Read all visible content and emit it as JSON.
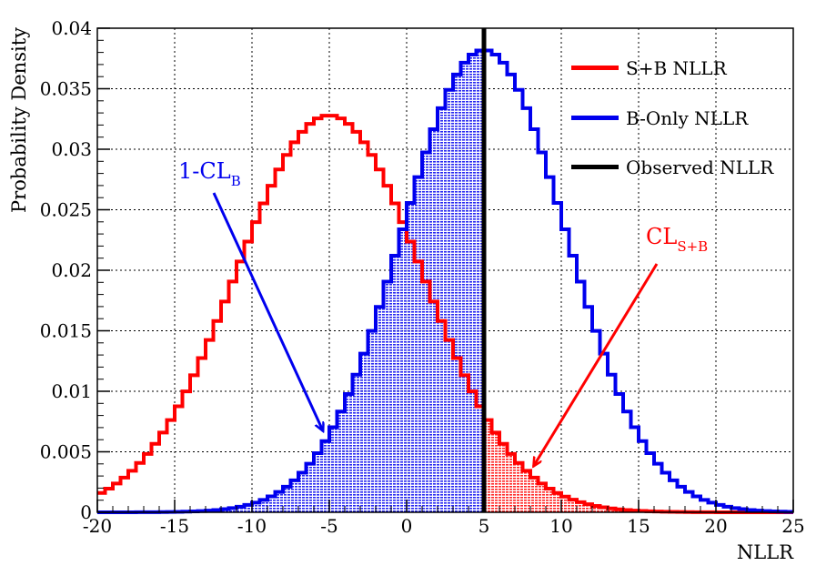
{
  "chart_data": {
    "type": "step-histogram",
    "xlabel": "NLLR",
    "ylabel": "Probability Density",
    "xlim": [
      -20,
      25
    ],
    "ylim": [
      0,
      0.04
    ],
    "x_ticks": [
      -20,
      -15,
      -10,
      -5,
      0,
      5,
      10,
      15,
      20,
      25
    ],
    "x_tick_labels": [
      "-20",
      "-15",
      "-10",
      "-5",
      "0",
      "5",
      "10",
      "15",
      "20",
      "25"
    ],
    "y_ticks": [
      0,
      0.005,
      0.01,
      0.015,
      0.02,
      0.025,
      0.03,
      0.035,
      0.04
    ],
    "y_tick_labels": [
      "0",
      "0.005",
      "0.01",
      "0.015",
      "0.02",
      "0.025",
      "0.03",
      "0.035",
      "0.04"
    ],
    "grid": true,
    "bin_width": 0.5,
    "legend_position": "top-right",
    "series": [
      {
        "name": "S+B NLLR",
        "color": "#ff0000",
        "shape": "gaussian",
        "mean": -5.0,
        "sigma": 6.0,
        "peak": 0.0328
      },
      {
        "name": "B-Only NLLR",
        "color": "#0000ee",
        "shape": "gaussian",
        "mean": 5.0,
        "sigma": 5.3,
        "peak": 0.0382
      }
    ],
    "observed": {
      "name": "Observed NLLR",
      "x": 5.0,
      "color": "#000000"
    },
    "regions": [
      {
        "series": "B-Only NLLR",
        "from": -20,
        "to": 5.0,
        "color": "#0000ee"
      },
      {
        "series": "S+B NLLR",
        "from": 5.0,
        "to": 25,
        "color": "#ff0000"
      }
    ],
    "annotations": [
      {
        "main": "1-CL",
        "sub": "B",
        "color": "#0000ee",
        "arrow_to": [
          -5.4,
          0.0067
        ]
      },
      {
        "main": "CL",
        "sub": "S+B",
        "color": "#ff0000",
        "arrow_to": [
          8.2,
          0.0038
        ]
      }
    ]
  }
}
